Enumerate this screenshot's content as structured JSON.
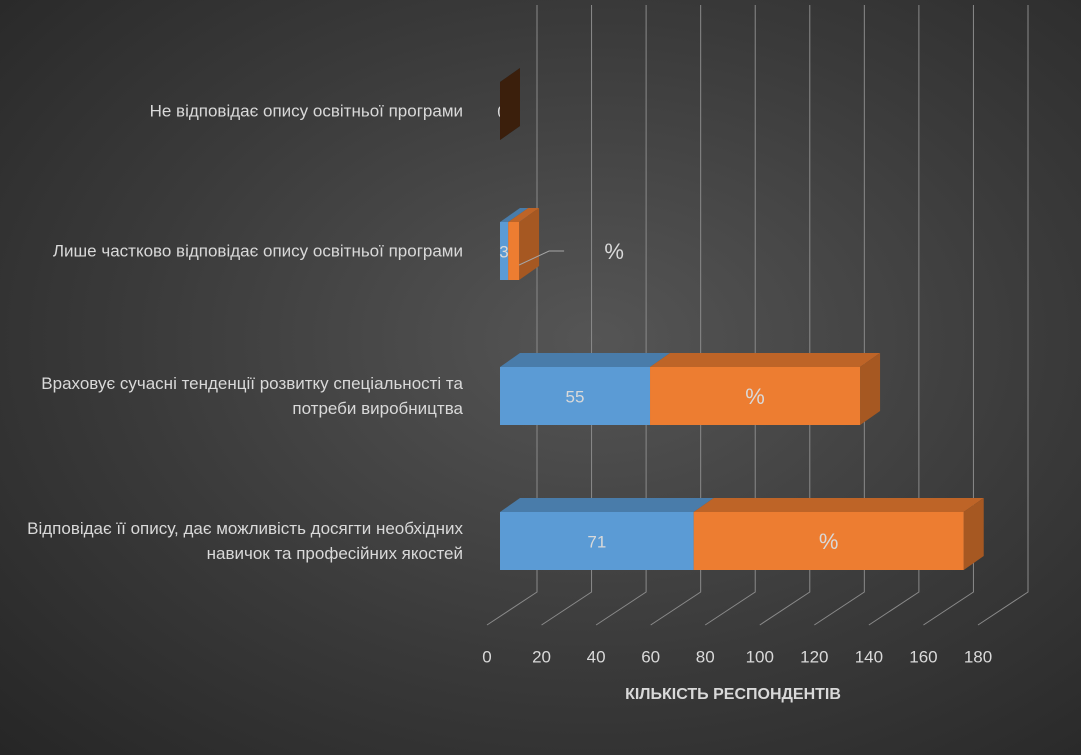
{
  "chart_data": {
    "type": "bar3d_stacked_horizontal",
    "x_label": "КІЛЬКІСТЬ РЕСПОНДЕНТІВ",
    "categories": [
      "Не відповідає опису освітньої програми",
      "Лише частково відповідає опису освітньої програми",
      "Враховує сучасні тенденції розвитку спеціальності та потреби виробництва",
      "Відповідає її опису, дає можливість досягти необхідних навичок та професійних якостей"
    ],
    "series": [
      {
        "color": "#5b9bd5",
        "values": [
          0,
          3,
          55,
          71
        ]
      },
      {
        "color": "#ed7d31",
        "values": [
          0,
          4,
          77,
          99
        ],
        "value_labels": [
          null,
          "%",
          "%",
          "%"
        ]
      }
    ],
    "xlim": [
      0,
      180
    ],
    "xticks": [
      0,
      20,
      40,
      60,
      80,
      100,
      120,
      140,
      160,
      180
    ],
    "grid": true
  }
}
